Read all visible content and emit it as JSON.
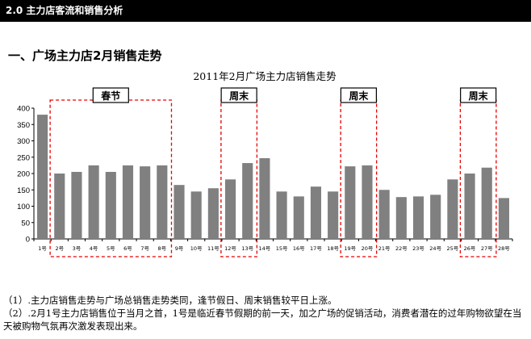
{
  "section": {
    "title": "2.0 主力店客流和销售分析"
  },
  "heading": "一、广场主力店2月销售走势",
  "chart_data": {
    "type": "bar",
    "title": "2011年2月广场主力店销售走势",
    "categories": [
      "1号",
      "2号",
      "3号",
      "4号",
      "5号",
      "6号",
      "7号",
      "8号",
      "9号",
      "10号",
      "11号",
      "12号",
      "13号",
      "14号",
      "15号",
      "16号",
      "17号",
      "18号",
      "19号",
      "20号",
      "21号",
      "22号",
      "23号",
      "24号",
      "25号",
      "26号",
      "27号",
      "28号"
    ],
    "values": [
      380,
      200,
      205,
      225,
      205,
      225,
      222,
      225,
      165,
      145,
      155,
      182,
      232,
      247,
      145,
      130,
      160,
      145,
      222,
      225,
      150,
      128,
      130,
      135,
      182,
      200,
      218,
      125
    ],
    "ylim": [
      0,
      400
    ],
    "yticks": [
      0,
      50,
      100,
      150,
      200,
      250,
      300,
      350,
      400
    ],
    "grid": false,
    "bar_color": "#808080",
    "annotations": [
      {
        "label": "春节",
        "from": "2号",
        "to": "8号",
        "color": "#e60000"
      },
      {
        "label": "周末",
        "from": "12号",
        "to": "13号",
        "color": "#e60000"
      },
      {
        "label": "周末",
        "from": "19号",
        "to": "20号",
        "color": "#e60000"
      },
      {
        "label": "周末",
        "from": "26号",
        "to": "27号",
        "color": "#e60000"
      }
    ]
  },
  "notes": [
    "（1）.主力店销售走势与广场总销售走势类同，逢节假日、周末销售较平日上涨。",
    "（2）.2月1号主力店销售位于当月之首，1号是临近春节假期的前一天，加之广场的促销活动，消费者潜在的过年购物欲望在当天被购物气氛再次激发表现出来。"
  ]
}
